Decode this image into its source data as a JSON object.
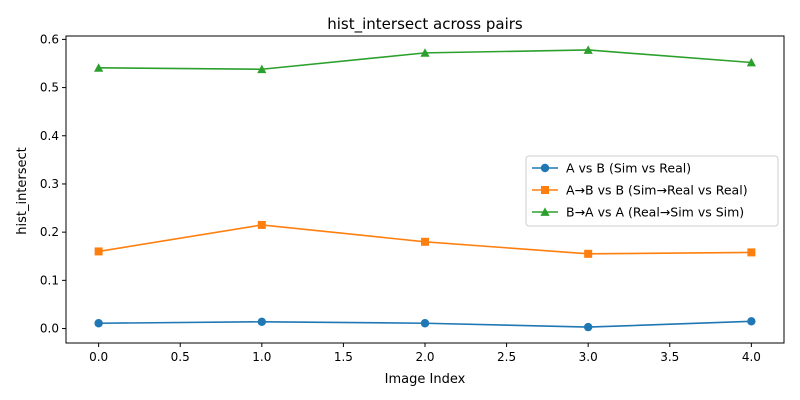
{
  "chart_data": {
    "type": "line",
    "title": "hist_intersect across pairs",
    "xlabel": "Image Index",
    "ylabel": "hist_intersect",
    "x": [
      0,
      1,
      2,
      3,
      4
    ],
    "xlim": [
      -0.2,
      4.2
    ],
    "ylim": [
      -0.03,
      0.607
    ],
    "xticks": [
      0.0,
      0.5,
      1.0,
      1.5,
      2.0,
      2.5,
      3.0,
      3.5,
      4.0
    ],
    "xtick_labels": [
      "0.0",
      "0.5",
      "1.0",
      "1.5",
      "2.0",
      "2.5",
      "3.0",
      "3.5",
      "4.0"
    ],
    "yticks": [
      0.0,
      0.1,
      0.2,
      0.3,
      0.4,
      0.5,
      0.6
    ],
    "ytick_labels": [
      "0.0",
      "0.1",
      "0.2",
      "0.3",
      "0.4",
      "0.5",
      "0.6"
    ],
    "grid": false,
    "legend_position": "center-right",
    "series": [
      {
        "name": "A vs B (Sim vs Real)",
        "color": "#1f77b4",
        "marker": "circle",
        "values": [
          0.011,
          0.014,
          0.011,
          0.003,
          0.015
        ]
      },
      {
        "name": "A→B vs B (Sim→Real vs Real)",
        "color": "#ff7f0e",
        "marker": "square",
        "values": [
          0.16,
          0.215,
          0.18,
          0.155,
          0.158
        ]
      },
      {
        "name": "B→A vs A (Real→Sim vs Sim)",
        "color": "#2ca02c",
        "marker": "triangle",
        "values": [
          0.541,
          0.538,
          0.572,
          0.578,
          0.552
        ]
      }
    ]
  }
}
